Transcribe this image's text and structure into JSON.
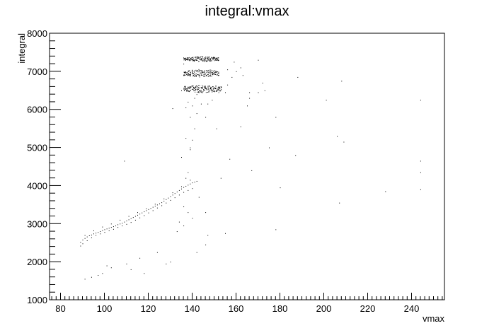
{
  "chart_data": {
    "type": "scatter",
    "title": "integral:vmax",
    "xlabel": "vmax",
    "ylabel": "integral",
    "xlim": [
      75,
      255
    ],
    "ylim": [
      1000,
      8000
    ],
    "x_ticks": [
      80,
      100,
      120,
      140,
      160,
      180,
      200,
      220,
      240
    ],
    "y_ticks": [
      1000,
      2000,
      3000,
      4000,
      5000,
      6000,
      7000,
      8000
    ],
    "x_tick_labels": [
      "80",
      "100",
      "120",
      "140",
      "160",
      "180",
      "200",
      "220",
      "240"
    ],
    "y_tick_labels": [
      "1000",
      "2000",
      "3000",
      "4000",
      "5000",
      "6000",
      "7000",
      "8000"
    ],
    "grid": false,
    "legend": "none",
    "marker_color": "#000000",
    "series": [
      {
        "values": [
          [
            89,
            2520
          ],
          [
            90,
            2580
          ],
          [
            91,
            2620
          ],
          [
            92,
            2660
          ],
          [
            93,
            2690
          ],
          [
            94,
            2710
          ],
          [
            95,
            2740
          ],
          [
            96,
            2760
          ],
          [
            97,
            2780
          ],
          [
            98,
            2800
          ],
          [
            99,
            2830
          ],
          [
            100,
            2850
          ],
          [
            101,
            2870
          ],
          [
            102,
            2890
          ],
          [
            103,
            2910
          ],
          [
            104,
            2930
          ],
          [
            105,
            2950
          ],
          [
            106,
            2980
          ],
          [
            107,
            3000
          ],
          [
            108,
            3020
          ],
          [
            109,
            3050
          ],
          [
            110,
            3080
          ],
          [
            111,
            3110
          ],
          [
            112,
            3140
          ],
          [
            113,
            3170
          ],
          [
            114,
            3200
          ],
          [
            115,
            3230
          ],
          [
            116,
            3260
          ],
          [
            117,
            3290
          ],
          [
            118,
            3320
          ],
          [
            119,
            3350
          ],
          [
            120,
            3380
          ],
          [
            121,
            3410
          ],
          [
            122,
            3440
          ],
          [
            123,
            3470
          ],
          [
            124,
            3500
          ],
          [
            125,
            3530
          ],
          [
            126,
            3560
          ],
          [
            127,
            3600
          ],
          [
            128,
            3640
          ],
          [
            129,
            3680
          ],
          [
            130,
            3720
          ],
          [
            131,
            3760
          ],
          [
            132,
            3800
          ],
          [
            133,
            3840
          ],
          [
            134,
            3880
          ],
          [
            135,
            3920
          ],
          [
            136,
            3960
          ],
          [
            137,
            3990
          ],
          [
            138,
            4020
          ],
          [
            139,
            4050
          ],
          [
            140,
            4080
          ],
          [
            141,
            4100
          ],
          [
            142,
            4120
          ],
          [
            89,
            2420
          ],
          [
            90,
            2480
          ],
          [
            92,
            2560
          ],
          [
            94,
            2640
          ],
          [
            96,
            2700
          ],
          [
            98,
            2740
          ],
          [
            100,
            2780
          ],
          [
            102,
            2820
          ],
          [
            104,
            2860
          ],
          [
            106,
            2910
          ],
          [
            108,
            2950
          ],
          [
            110,
            2990
          ],
          [
            112,
            3040
          ],
          [
            114,
            3100
          ],
          [
            116,
            3160
          ],
          [
            118,
            3220
          ],
          [
            120,
            3290
          ],
          [
            122,
            3350
          ],
          [
            124,
            3420
          ],
          [
            126,
            3480
          ],
          [
            128,
            3550
          ],
          [
            130,
            3620
          ],
          [
            132,
            3690
          ],
          [
            134,
            3760
          ],
          [
            136,
            3830
          ],
          [
            138,
            3880
          ],
          [
            140,
            3930
          ],
          [
            91,
            2700
          ],
          [
            95,
            2820
          ],
          [
            99,
            2920
          ],
          [
            103,
            3000
          ],
          [
            107,
            3100
          ],
          [
            111,
            3200
          ],
          [
            115,
            3300
          ],
          [
            119,
            3400
          ],
          [
            123,
            3520
          ],
          [
            127,
            3660
          ],
          [
            131,
            3820
          ],
          [
            135,
            3980
          ],
          [
            139,
            4150
          ],
          [
            137,
            4200
          ],
          [
            136,
            3450
          ],
          [
            138,
            3300
          ],
          [
            140,
            3150
          ],
          [
            134,
            3050
          ],
          [
            136,
            2950
          ],
          [
            143,
            3700
          ],
          [
            146,
            3300
          ],
          [
            142,
            2250
          ],
          [
            146,
            2450
          ],
          [
            147,
            2700
          ],
          [
            155,
            2750
          ],
          [
            130,
            2000
          ],
          [
            133,
            2800
          ],
          [
            128,
            1950
          ],
          [
            124,
            2250
          ],
          [
            118,
            1700
          ],
          [
            116,
            2100
          ],
          [
            110,
            1950
          ],
          [
            112,
            1800
          ],
          [
            103,
            1850
          ],
          [
            101,
            1900
          ],
          [
            99,
            1700
          ],
          [
            97,
            1650
          ],
          [
            94,
            1600
          ],
          [
            91,
            1550
          ],
          [
            109,
            4650
          ],
          [
            138,
            4350
          ],
          [
            135,
            4750
          ],
          [
            137,
            5250
          ],
          [
            139,
            4950
          ],
          [
            140,
            5200
          ],
          [
            141,
            5500
          ],
          [
            142,
            5900
          ],
          [
            140,
            6100
          ],
          [
            139,
            5800
          ],
          [
            141,
            6300
          ],
          [
            142,
            6400
          ],
          [
            143,
            6450
          ],
          [
            138,
            6200
          ],
          [
            137,
            6050
          ],
          [
            131,
            6030
          ],
          [
            146,
            5800
          ],
          [
            151,
            5500
          ],
          [
            153,
            4200
          ],
          [
            157,
            4700
          ],
          [
            162,
            5550
          ],
          [
            167,
            4400
          ],
          [
            175,
            5000
          ],
          [
            178,
            2850
          ],
          [
            178,
            5800
          ],
          [
            180,
            3950
          ],
          [
            187,
            4800
          ],
          [
            188,
            6850
          ],
          [
            201,
            6250
          ],
          [
            206,
            5300
          ],
          [
            207,
            3550
          ],
          [
            209,
            5150
          ],
          [
            208,
            6750
          ],
          [
            228,
            3850
          ],
          [
            244,
            3900
          ],
          [
            244,
            4350
          ],
          [
            244,
            4650
          ],
          [
            244,
            6250
          ],
          [
            170,
            7300
          ],
          [
            172,
            6700
          ],
          [
            173,
            6500
          ],
          [
            166,
            6450
          ],
          [
            166,
            6300
          ],
          [
            165,
            6100
          ],
          [
            170,
            6450
          ],
          [
            159,
            7250
          ],
          [
            160,
            7000
          ],
          [
            156,
            7050
          ],
          [
            158,
            6850
          ],
          [
            156,
            6650
          ],
          [
            162,
            7100
          ],
          [
            163,
            6900
          ],
          [
            155,
            6450
          ],
          [
            149,
            6250
          ],
          [
            147,
            6150
          ],
          [
            144,
            6150
          ],
          [
            152,
            6450
          ],
          [
            135,
            6500
          ],
          [
            136,
            6900
          ],
          [
            136,
            7200
          ],
          [
            139,
            5000
          ]
        ]
      }
    ],
    "clusters": [
      {
        "x_range": [
          136,
          152
        ],
        "y_center": 7330,
        "y_spread": 70
      },
      {
        "x_range": [
          136,
          152
        ],
        "y_center": 6960,
        "y_spread": 110
      },
      {
        "x_range": [
          136,
          153
        ],
        "y_center": 6550,
        "y_spread": 110
      }
    ]
  }
}
